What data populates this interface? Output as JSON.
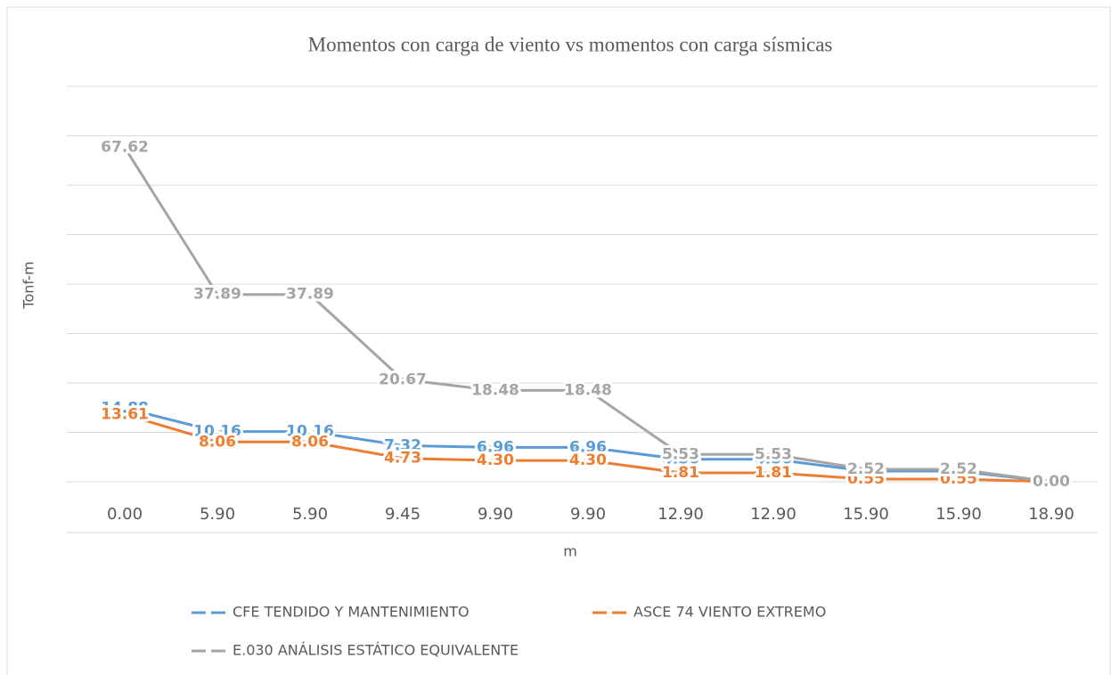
{
  "chart_data": {
    "type": "line",
    "title": "Momentos con carga de viento vs momentos con carga sísmicas",
    "x_label": "m",
    "y_label": "Tonf-m",
    "categories": [
      "0.00",
      "5.90",
      "5.90",
      "9.45",
      "9.90",
      "9.90",
      "12.90",
      "12.90",
      "15.90",
      "15.90",
      "18.90"
    ],
    "series": [
      {
        "name": "CFE TENDIDO Y MANTENIMIENTO",
        "color": "#5b9bd5",
        "values": [
          14.88,
          10.16,
          10.16,
          7.32,
          6.96,
          6.96,
          4.56,
          4.56,
          2.16,
          2.16,
          0
        ],
        "value_labels": [
          "14.88",
          "10.16",
          "10.16",
          "7.32",
          "6.96",
          "6.96",
          "4.56",
          "4.56",
          "2.16",
          "2.16",
          "0.00"
        ]
      },
      {
        "name": "ASCE 74 VIENTO EXTREMO",
        "color": "#ed7d31",
        "values": [
          13.61,
          8.06,
          8.06,
          4.73,
          4.3,
          4.3,
          1.81,
          1.81,
          0.55,
          0.55,
          0
        ],
        "value_labels": [
          "13.61",
          "8.06",
          "8.06",
          "4.73",
          "4.30",
          "4.30",
          "1.81",
          "1.81",
          "0.55",
          "0.55",
          "0.00"
        ]
      },
      {
        "name": "E.030 ANÁLISIS ESTÁTICO EQUIVALENTE",
        "color": "#a5a5a5",
        "values": [
          67.62,
          37.89,
          37.89,
          20.67,
          18.48,
          18.48,
          5.53,
          5.53,
          2.52,
          2.52,
          0
        ],
        "value_labels": [
          "67.62",
          "37.89",
          "37.89",
          "20.67",
          "18.48",
          "18.48",
          "5.53",
          "5.53",
          "2.52",
          "2.52",
          "0.00"
        ]
      }
    ],
    "ylim": [
      0,
      80
    ],
    "yticks": [
      0,
      10,
      20,
      30,
      40,
      50,
      60,
      70,
      80
    ],
    "grid": true,
    "legend": "bottom"
  }
}
